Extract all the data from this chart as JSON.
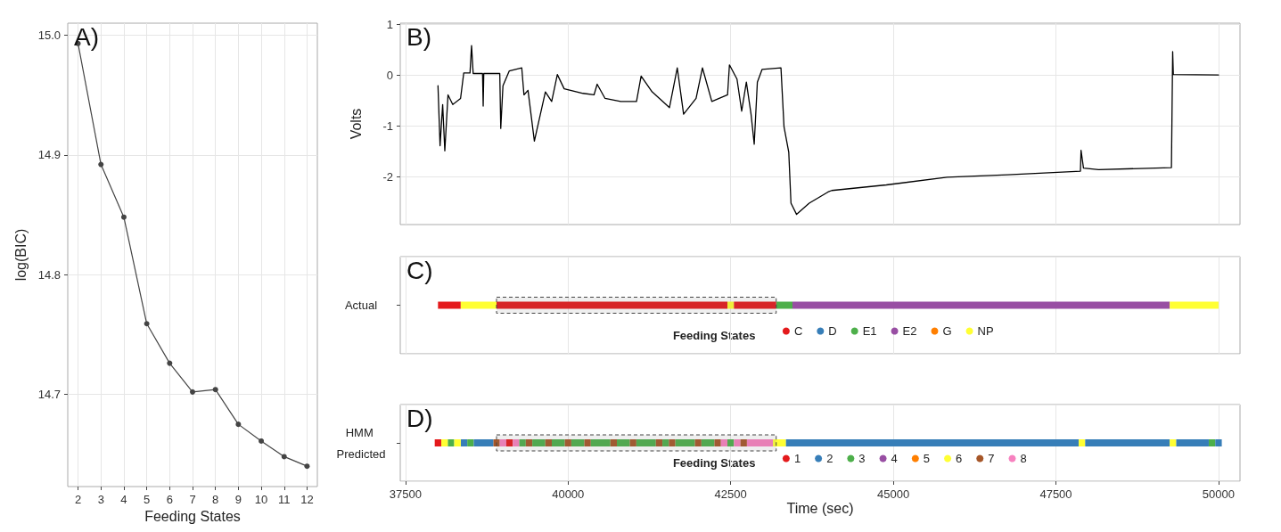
{
  "chart_data": [
    {
      "type": "line",
      "title": "A)",
      "xlabel": "Feeding States",
      "ylabel": "log(BIC)",
      "x": [
        2,
        3,
        4,
        5,
        6,
        7,
        8,
        9,
        10,
        11,
        12
      ],
      "values": [
        14.993,
        14.892,
        14.848,
        14.759,
        14.726,
        14.702,
        14.704,
        14.675,
        14.661,
        14.648,
        14.64
      ],
      "color": "#444444",
      "xlim": [
        1.55,
        12.45
      ],
      "xticks": [
        2,
        3,
        4,
        5,
        6,
        7,
        8,
        9,
        10,
        11,
        12
      ],
      "ylim": [
        14.623,
        15.01
      ],
      "yticks": [
        14.7,
        14.8,
        14.9,
        {
          "value": 15,
          "label": "15.0"
        }
      ],
      "grid": true,
      "marker": "circle",
      "line_style": "solid"
    },
    {
      "type": "line",
      "title": "B)",
      "ylabel": "Volts",
      "color": "#000000",
      "x": [
        38000,
        38032,
        38072,
        38105,
        38154,
        38227,
        38347,
        38396,
        38492,
        38516,
        38541,
        38685,
        38695,
        38704,
        38950,
        38965,
        38999,
        39095,
        39288,
        39322,
        39384,
        39482,
        39651,
        39748,
        39835,
        39940,
        40231,
        40399,
        40447,
        40569,
        40810,
        41052,
        41123,
        41292,
        41559,
        41679,
        41776,
        41968,
        42066,
        42210,
        42452,
        42481,
        42597,
        42669,
        42741,
        42813,
        42862,
        42910,
        42982,
        43273,
        43320,
        43393,
        43427,
        43513,
        43707,
        43996,
        44054,
        44893,
        45826,
        46758,
        47877,
        47886,
        47924,
        48156,
        49276,
        49295,
        49305,
        50000
      ],
      "values": [
        -0.21,
        -1.39,
        -0.58,
        -1.49,
        -0.39,
        -0.58,
        -0.46,
        0.04,
        0.04,
        0.58,
        0.03,
        0.03,
        -0.61,
        0.03,
        0.03,
        -1.05,
        -0.21,
        0.08,
        0.14,
        -0.39,
        -0.3,
        -1.3,
        -0.33,
        -0.52,
        0.01,
        -0.27,
        -0.36,
        -0.39,
        -0.18,
        -0.46,
        -0.52,
        -0.52,
        -0.02,
        -0.33,
        -0.64,
        0.14,
        -0.77,
        -0.46,
        0.14,
        -0.52,
        -0.39,
        0.2,
        -0.08,
        -0.71,
        -0.14,
        -0.77,
        -1.36,
        -0.14,
        0.11,
        0.14,
        -1.02,
        -1.52,
        -2.52,
        -2.74,
        -2.52,
        -2.3,
        -2.27,
        -2.16,
        -2.01,
        -1.96,
        -1.89,
        -1.48,
        -1.83,
        -1.86,
        -1.82,
        0.46,
        0.01,
        0
      ],
      "xlim": [
        37420,
        50330
      ],
      "xticks": [
        37500,
        40000,
        42500,
        45000,
        47500,
        50000
      ],
      "ylim": [
        -2.94,
        1.02
      ],
      "yticks": [
        -2,
        -1,
        0,
        1
      ],
      "tick_labels": "y",
      "grid": true,
      "line_style": "solid"
    },
    {
      "type": "bar",
      "orientation": "horizontal",
      "title": "C)",
      "categories": [
        "Actual"
      ],
      "legend": "bottom",
      "legend_title": "Feeding States",
      "xlim": [
        37420,
        50330
      ],
      "xticks": [
        37500,
        40000,
        42500,
        45000,
        47500,
        50000
      ],
      "tick_labels": "y",
      "grid": true,
      "bands": [
        {
          "axis": "x",
          "from": 38900,
          "to": 43200
        }
      ],
      "series": [
        {
          "name": "C",
          "color": "#e41a1c",
          "base": [
            38000
          ],
          "values": [
            350
          ]
        },
        {
          "name": "D",
          "color": "#377eb8",
          "base": [
            null
          ],
          "values": [
            null
          ]
        },
        {
          "name": "E1",
          "color": "#4daf4a",
          "base": [
            43200
          ],
          "values": [
            250
          ]
        },
        {
          "name": "E2",
          "color": "#984ea3",
          "base": [
            43450
          ],
          "values": [
            5800
          ]
        },
        {
          "name": "G",
          "color": "#ff7f00",
          "base": [
            null
          ],
          "values": [
            null
          ]
        },
        {
          "name": "NP",
          "color": "#ffff33",
          "base": [
            38350
          ],
          "values": [
            550
          ]
        },
        {
          "color": "#e41a1c",
          "base": [
            38900
          ],
          "values": [
            3550
          ]
        },
        {
          "color": "#ffff33",
          "base": [
            42450
          ],
          "values": [
            100
          ]
        },
        {
          "color": "#e41a1c",
          "base": [
            42550
          ],
          "values": [
            650
          ]
        },
        {
          "color": "#ffff33",
          "base": [
            49250
          ],
          "values": [
            750
          ]
        }
      ]
    },
    {
      "type": "bar",
      "orientation": "horizontal",
      "title": "D)",
      "categories": [
        "HMM Predicted"
      ],
      "xlabel": "Time (sec)",
      "legend": "bottom",
      "legend_title": "Feeding States",
      "xlim": [
        37420,
        50330
      ],
      "xticks": [
        37500,
        40000,
        42500,
        45000,
        47500,
        50000
      ],
      "grid": true,
      "bands": [
        {
          "axis": "x",
          "from": 38900,
          "to": 43200
        }
      ],
      "series": [
        {
          "name": "1",
          "color": "#e41a1c",
          "base": [
            37950
          ],
          "values": [
            100
          ]
        },
        {
          "name": "2",
          "color": "#377eb8",
          "base": [
            38350
          ],
          "values": [
            100
          ]
        },
        {
          "name": "3",
          "color": "#4daf4a",
          "base": [
            38150
          ],
          "values": [
            100
          ]
        },
        {
          "name": "4",
          "color": "#984ea3",
          "base": [
            null
          ],
          "values": [
            null
          ]
        },
        {
          "name": "5",
          "color": "#ff7f00",
          "base": [
            null
          ],
          "values": [
            null
          ]
        },
        {
          "name": "6",
          "color": "#ffff33",
          "base": [
            38050
          ],
          "values": [
            100
          ]
        },
        {
          "name": "7",
          "color": "#a65628",
          "base": [
            38850
          ],
          "values": [
            100
          ]
        },
        {
          "name": "8",
          "color": "#f781bf",
          "base": [
            38950
          ],
          "values": [
            100
          ]
        },
        {
          "color": "#e41a1c",
          "base": [
            39050
          ],
          "values": [
            100
          ]
        },
        {
          "color": "#ffff33",
          "base": [
            38250
          ],
          "values": [
            100
          ]
        },
        {
          "color": "#4daf4a",
          "base": [
            38450
          ],
          "values": [
            100
          ]
        },
        {
          "color": "#377eb8",
          "base": [
            38550
          ],
          "values": [
            300
          ]
        },
        {
          "color": "#f781bf",
          "base": [
            39150
          ],
          "values": [
            100
          ]
        },
        {
          "color": "#4daf4a",
          "base": [
            39250
          ],
          "values": [
            100
          ]
        },
        {
          "color": "#a65628",
          "base": [
            39350
          ],
          "values": [
            100
          ]
        },
        {
          "color": "#4daf4a",
          "base": [
            39450
          ],
          "values": [
            200
          ]
        },
        {
          "color": "#a65628",
          "base": [
            39650
          ],
          "values": [
            100
          ]
        },
        {
          "color": "#4daf4a",
          "base": [
            39750
          ],
          "values": [
            200
          ]
        },
        {
          "color": "#a65628",
          "base": [
            39950
          ],
          "values": [
            100
          ]
        },
        {
          "color": "#4daf4a",
          "base": [
            40050
          ],
          "values": [
            200
          ]
        },
        {
          "color": "#a65628",
          "base": [
            40250
          ],
          "values": [
            100
          ]
        },
        {
          "color": "#4daf4a",
          "base": [
            40350
          ],
          "values": [
            300
          ]
        },
        {
          "color": "#a65628",
          "base": [
            40650
          ],
          "values": [
            100
          ]
        },
        {
          "color": "#4daf4a",
          "base": [
            40750
          ],
          "values": [
            200
          ]
        },
        {
          "color": "#a65628",
          "base": [
            40950
          ],
          "values": [
            100
          ]
        },
        {
          "color": "#4daf4a",
          "base": [
            41050
          ],
          "values": [
            300
          ]
        },
        {
          "color": "#a65628",
          "base": [
            41350
          ],
          "values": [
            100
          ]
        },
        {
          "color": "#4daf4a",
          "base": [
            41450
          ],
          "values": [
            100
          ]
        },
        {
          "color": "#a65628",
          "base": [
            41550
          ],
          "values": [
            100
          ]
        },
        {
          "color": "#4daf4a",
          "base": [
            41650
          ],
          "values": [
            300
          ]
        },
        {
          "color": "#a65628",
          "base": [
            41950
          ],
          "values": [
            100
          ]
        },
        {
          "color": "#4daf4a",
          "base": [
            42050
          ],
          "values": [
            200
          ]
        },
        {
          "color": "#a65628",
          "base": [
            42250
          ],
          "values": [
            100
          ]
        },
        {
          "color": "#f781bf",
          "base": [
            42350
          ],
          "values": [
            100
          ]
        },
        {
          "color": "#4daf4a",
          "base": [
            42450
          ],
          "values": [
            100
          ]
        },
        {
          "color": "#f781bf",
          "base": [
            42550
          ],
          "values": [
            100
          ]
        },
        {
          "color": "#a65628",
          "base": [
            42650
          ],
          "values": [
            100
          ]
        },
        {
          "color": "#f781bf",
          "base": [
            42750
          ],
          "values": [
            400
          ]
        },
        {
          "color": "#ffff33",
          "base": [
            43150
          ],
          "values": [
            200
          ]
        },
        {
          "color": "#377eb8",
          "base": [
            43350
          ],
          "values": [
            4500
          ]
        },
        {
          "color": "#ffff33",
          "base": [
            47850
          ],
          "values": [
            100
          ]
        },
        {
          "color": "#377eb8",
          "base": [
            47950
          ],
          "values": [
            1300
          ]
        },
        {
          "color": "#ffff33",
          "base": [
            49250
          ],
          "values": [
            100
          ]
        },
        {
          "color": "#377eb8",
          "base": [
            49350
          ],
          "values": [
            500
          ]
        },
        {
          "color": "#4daf4a",
          "base": [
            49850
          ],
          "values": [
            100
          ]
        },
        {
          "color": "#377eb8",
          "base": [
            49950
          ],
          "values": [
            100
          ]
        }
      ]
    }
  ]
}
